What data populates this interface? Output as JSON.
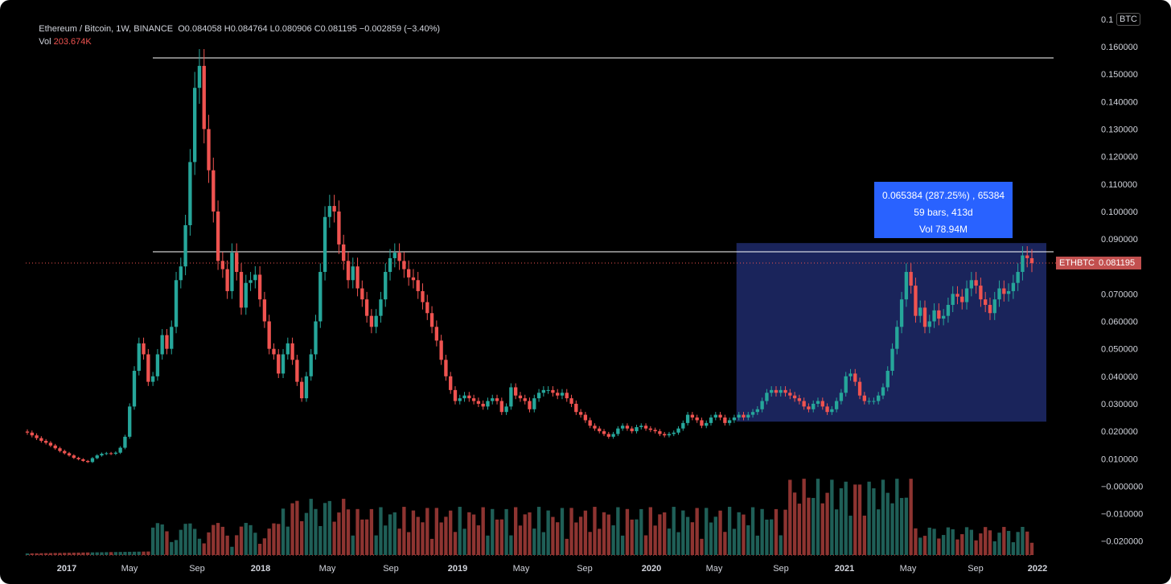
{
  "legend": {
    "title": "Ethereum / Bitcoin, 1W, BINANCE",
    "ohlc_open": "O0.084058",
    "ohlc_high": "H0.084764",
    "ohlc_low": "L0.080906",
    "ohlc_close": "C0.081195",
    "ohlc_change": "−0.002859 (−3.40%)",
    "vol_label": "Vol",
    "vol_value": "203.674K"
  },
  "axis_unit_badge": "BTC",
  "symbol_tag": "ETHBTC",
  "last_price_tag": "0.081195",
  "measure_box": {
    "line1": "0.065384 (287.25%) , 65384",
    "line2": "59 bars, 413d",
    "line3": "Vol 78.94M"
  },
  "colors": {
    "up": "#26a69a",
    "down": "#ef5350",
    "up_volume": "#1f5f57",
    "down_volume": "#8e3431",
    "measure_fill": "#1f2a6b",
    "measure_label": "#2962ff",
    "horizontal_line": "#ffffff",
    "price_line": "#ef5350"
  },
  "chart_data": {
    "type": "candlestick",
    "symbol": "ETHBTC",
    "interval": "1W",
    "y_axis_ticks": [
      "0.160000",
      "0.150000",
      "0.140000",
      "0.130000",
      "0.120000",
      "0.110000",
      "0.100000",
      "0.090000",
      "0.080000",
      "0.070000",
      "0.060000",
      "0.050000",
      "0.040000",
      "0.030000",
      "0.020000",
      "0.010000",
      "−0.000000",
      "−0.010000",
      "−0.020000"
    ],
    "y_axis_top_label": "0.1",
    "x_axis_ticks": [
      "2017",
      "May",
      "Sep",
      "2018",
      "May",
      "Sep",
      "2019",
      "May",
      "Sep",
      "2020",
      "May",
      "Sep",
      "2021",
      "May",
      "Sep",
      "2022"
    ],
    "ylim": [
      -0.025,
      0.165
    ],
    "horizontal_lines": [
      0.156,
      0.085
    ],
    "last_price": 0.081195,
    "measure_range": {
      "low": 0.0235,
      "high": 0.0885,
      "change": 0.065384,
      "bars": 59
    },
    "close_series": [
      0.0195,
      0.0185,
      0.0175,
      0.0165,
      0.0158,
      0.0148,
      0.0138,
      0.0128,
      0.012,
      0.0112,
      0.0103,
      0.0098,
      0.0092,
      0.0088,
      0.0102,
      0.0112,
      0.0118,
      0.012,
      0.0118,
      0.0122,
      0.014,
      0.018,
      0.029,
      0.042,
      0.052,
      0.048,
      0.038,
      0.04,
      0.048,
      0.055,
      0.05,
      0.058,
      0.075,
      0.08,
      0.095,
      0.118,
      0.145,
      0.153,
      0.13,
      0.115,
      0.1,
      0.082,
      0.079,
      0.071,
      0.085,
      0.078,
      0.065,
      0.074,
      0.075,
      0.077,
      0.068,
      0.06,
      0.05,
      0.048,
      0.041,
      0.048,
      0.052,
      0.046,
      0.038,
      0.032,
      0.04,
      0.048,
      0.06,
      0.078,
      0.098,
      0.102,
      0.1,
      0.088,
      0.082,
      0.075,
      0.08,
      0.072,
      0.068,
      0.062,
      0.058,
      0.062,
      0.068,
      0.078,
      0.083,
      0.085,
      0.082,
      0.079,
      0.076,
      0.075,
      0.071,
      0.067,
      0.063,
      0.058,
      0.053,
      0.046,
      0.04,
      0.035,
      0.031,
      0.032,
      0.033,
      0.032,
      0.031,
      0.03,
      0.029,
      0.031,
      0.032,
      0.031,
      0.027,
      0.029,
      0.036,
      0.033,
      0.032,
      0.031,
      0.028,
      0.032,
      0.034,
      0.035,
      0.035,
      0.034,
      0.033,
      0.034,
      0.032,
      0.03,
      0.027,
      0.026,
      0.024,
      0.022,
      0.021,
      0.02,
      0.019,
      0.018,
      0.019,
      0.021,
      0.022,
      0.021,
      0.02,
      0.0215,
      0.022,
      0.021,
      0.0205,
      0.02,
      0.019,
      0.0185,
      0.019,
      0.0195,
      0.021,
      0.023,
      0.026,
      0.025,
      0.024,
      0.022,
      0.023,
      0.025,
      0.026,
      0.025,
      0.023,
      0.024,
      0.025,
      0.026,
      0.025,
      0.026,
      0.027,
      0.028,
      0.031,
      0.034,
      0.035,
      0.034,
      0.035,
      0.034,
      0.033,
      0.032,
      0.031,
      0.029,
      0.028,
      0.03,
      0.031,
      0.029,
      0.027,
      0.028,
      0.031,
      0.034,
      0.04,
      0.041,
      0.038,
      0.033,
      0.031,
      0.031,
      0.031,
      0.033,
      0.036,
      0.042,
      0.05,
      0.058,
      0.068,
      0.078,
      0.073,
      0.062,
      0.065,
      0.058,
      0.06,
      0.064,
      0.061,
      0.062,
      0.066,
      0.07,
      0.069,
      0.067,
      0.072,
      0.075,
      0.073,
      0.068,
      0.066,
      0.063,
      0.068,
      0.072,
      0.07,
      0.071,
      0.074,
      0.078,
      0.084,
      0.083,
      0.081195
    ],
    "note_series": "weekly closes estimated from the price axis; volume shown as relative bars beneath"
  }
}
